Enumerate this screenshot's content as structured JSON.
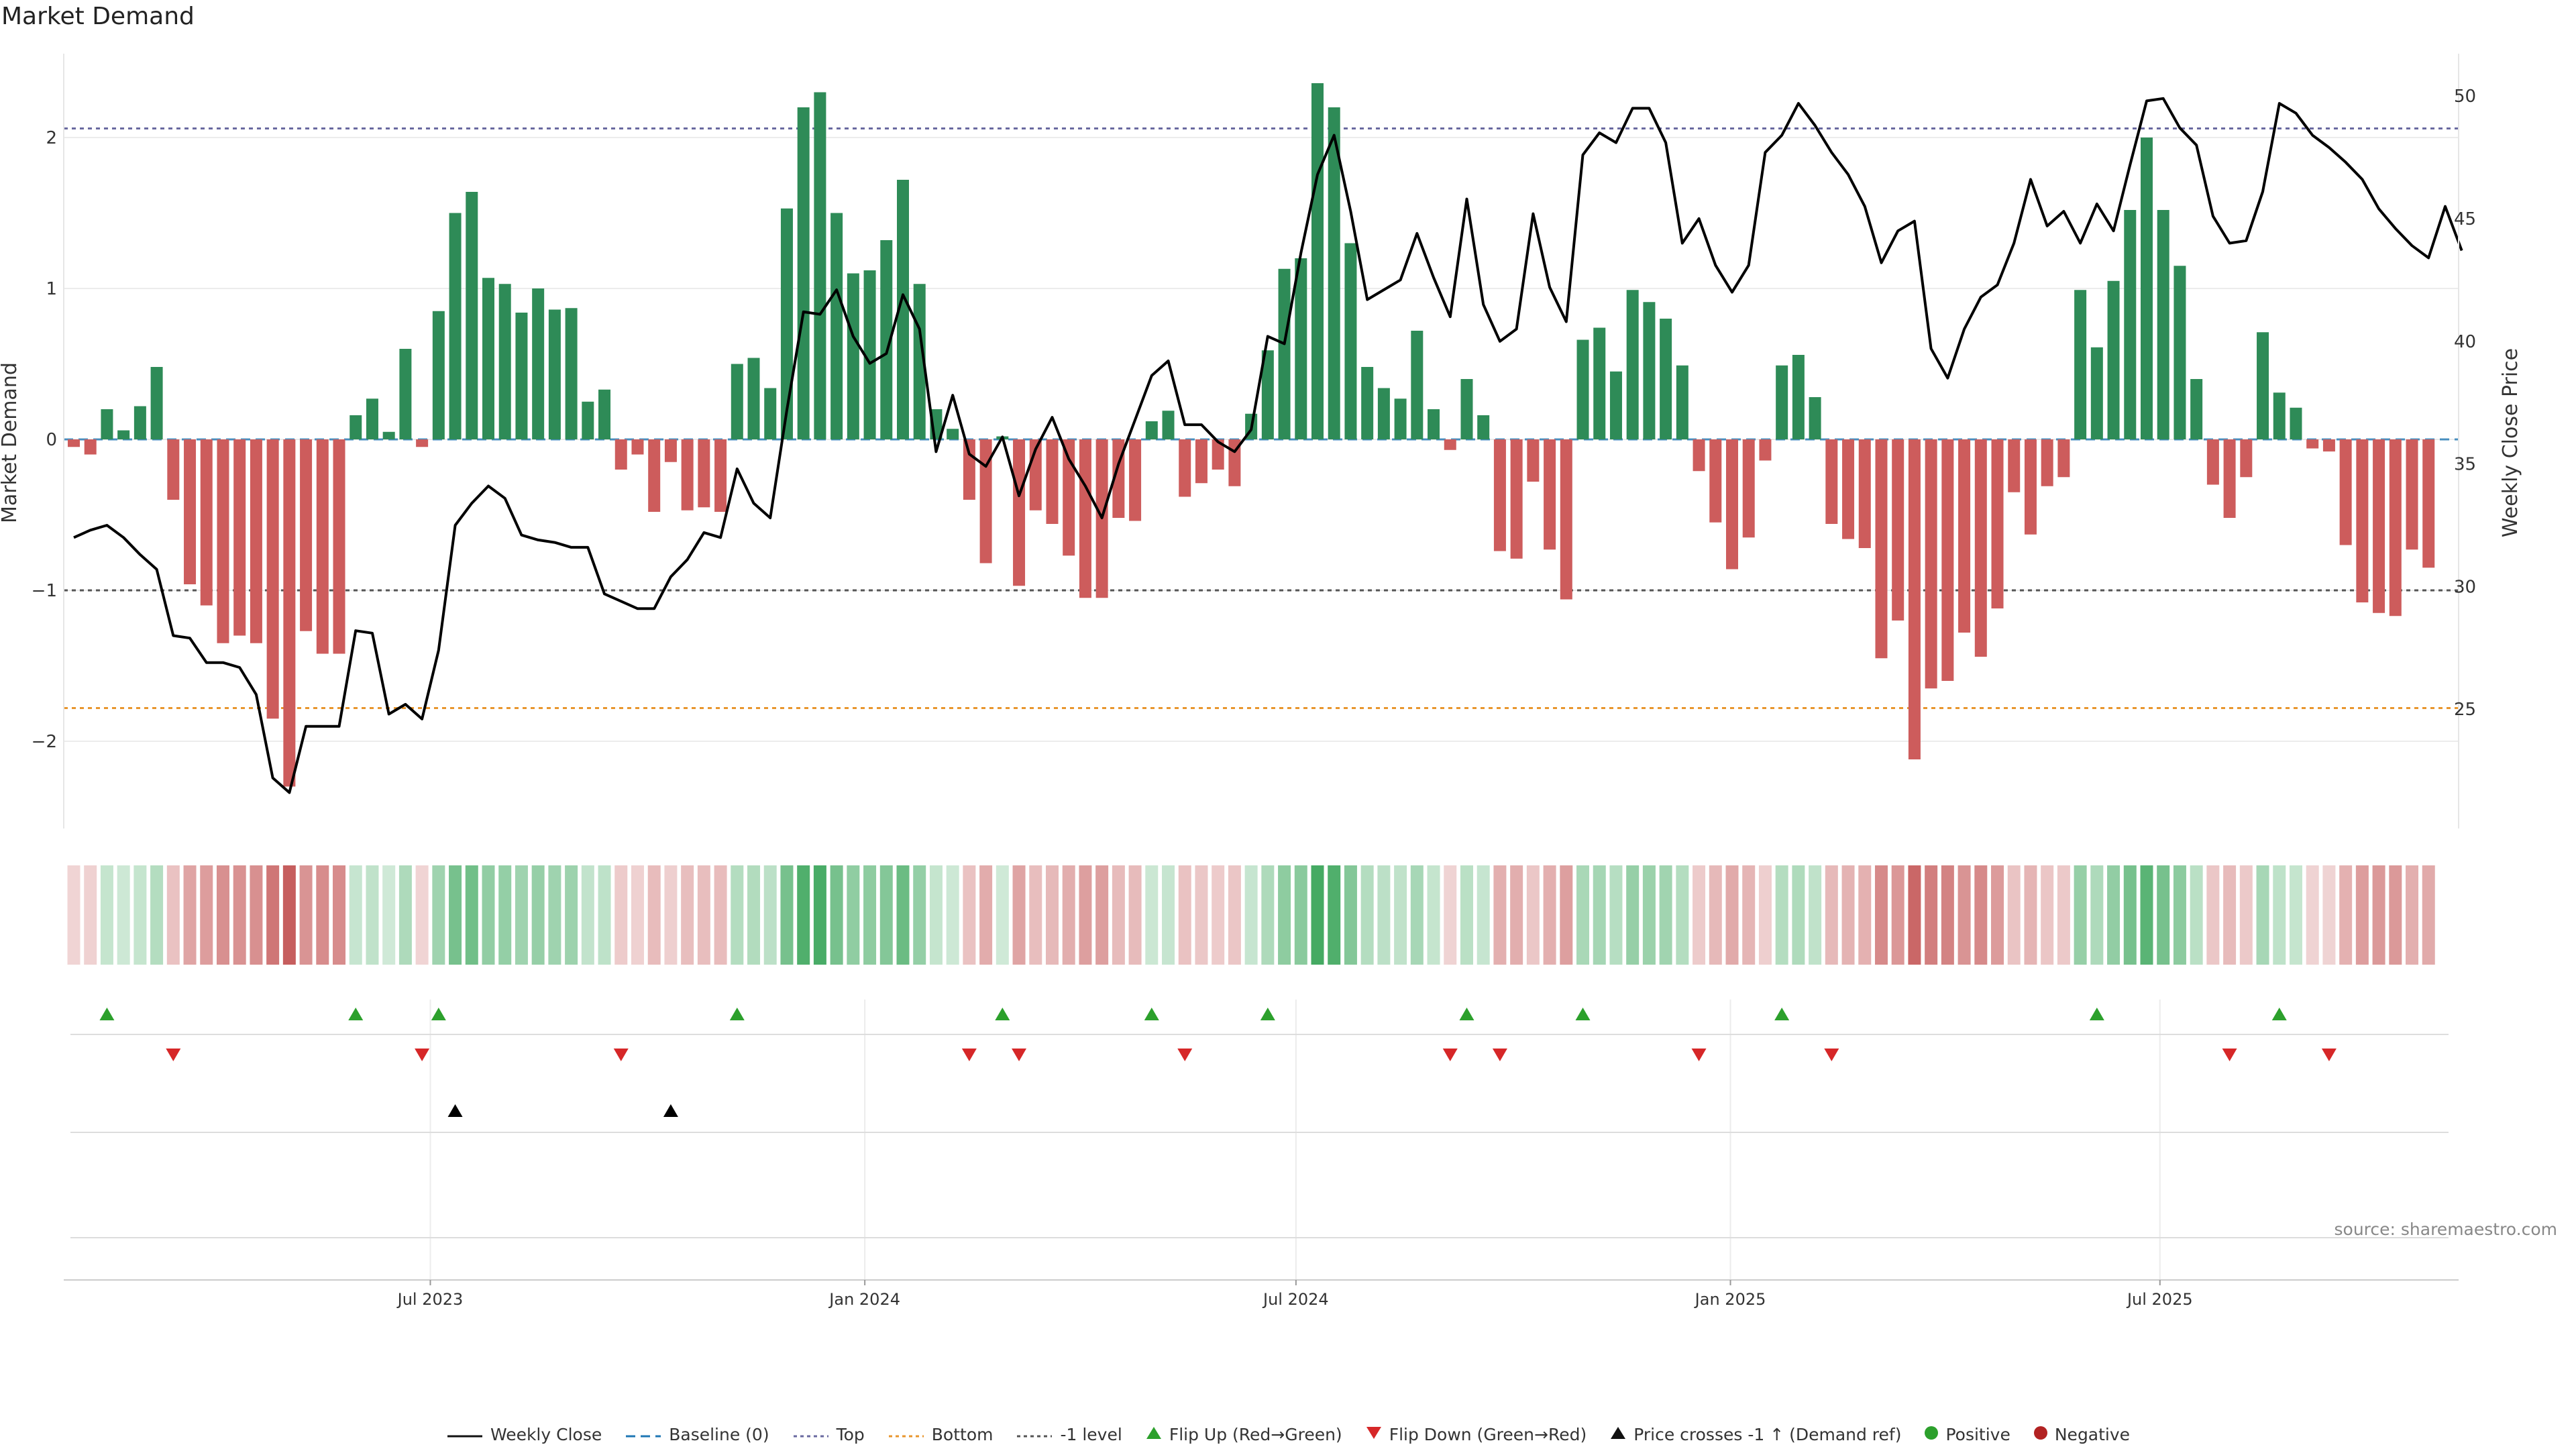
{
  "title": "Market Demand",
  "source": "source: sharemaestro.com",
  "colors": {
    "pos": "#2e8b57",
    "neg": "#cd5c5c",
    "price": "#000000",
    "top": "#6a6aa0",
    "bottom": "#e8962e",
    "minus1": "#555555",
    "baseline": "#1f77b4",
    "flipUp": "#2ca02c",
    "flipDown": "#d62728",
    "cross": "#000000"
  },
  "chart_data": {
    "type": "bar+line",
    "title": "Market Demand",
    "ylabel_left": "Market Demand",
    "ylabel_right": "Weekly Close Price",
    "ylim_left": [
      -2.6,
      2.6
    ],
    "ylim_right": [
      20,
      52
    ],
    "yticks_left": [
      {
        "v": 2,
        "label": "2"
      },
      {
        "v": 1,
        "label": "1"
      },
      {
        "v": 0,
        "label": "0"
      },
      {
        "v": -1,
        "label": "−1"
      },
      {
        "v": -2,
        "label": "−2"
      }
    ],
    "yticks_right": [
      {
        "v": 50,
        "label": "50"
      },
      {
        "v": 45,
        "label": "45"
      },
      {
        "v": 40,
        "label": "40"
      },
      {
        "v": 35,
        "label": "35"
      },
      {
        "v": 30,
        "label": "30"
      },
      {
        "v": 25,
        "label": "25"
      }
    ],
    "reference_lines": {
      "top": 2.06,
      "bottom": -1.78,
      "minus_one": -1.0,
      "baseline": 0
    },
    "x_start": "2023-01-13",
    "x_ticks": [
      {
        "label": "Jul 2023",
        "index": 21.5
      },
      {
        "label": "Jan 2024",
        "index": 47.7
      },
      {
        "label": "Jul 2024",
        "index": 73.7
      },
      {
        "label": "Jan 2025",
        "index": 99.9
      },
      {
        "label": "Jul 2025",
        "index": 125.8
      }
    ],
    "demand": [
      -0.05,
      -0.1,
      0.2,
      0.06,
      0.22,
      0.48,
      -0.4,
      -0.96,
      -1.1,
      -1.35,
      -1.3,
      -1.35,
      -1.85,
      -2.3,
      -1.27,
      -1.42,
      -1.42,
      0.16,
      0.27,
      0.05,
      0.6,
      -0.05,
      0.85,
      1.5,
      1.64,
      1.07,
      1.03,
      0.84,
      1.0,
      0.86,
      0.87,
      0.25,
      0.33,
      -0.2,
      -0.1,
      -0.48,
      -0.15,
      -0.47,
      -0.45,
      -0.48,
      0.5,
      0.54,
      0.34,
      1.53,
      2.2,
      2.3,
      1.5,
      1.1,
      1.12,
      1.32,
      1.72,
      1.03,
      0.2,
      0.07,
      -0.4,
      -0.82,
      0.02,
      -0.97,
      -0.47,
      -0.56,
      -0.77,
      -1.05,
      -1.05,
      -0.52,
      -0.54,
      0.12,
      0.19,
      -0.38,
      -0.29,
      -0.2,
      -0.31,
      0.17,
      0.59,
      1.13,
      1.2,
      2.36,
      2.2,
      1.3,
      0.48,
      0.34,
      0.27,
      0.72,
      0.2,
      -0.07,
      0.4,
      0.16,
      -0.74,
      -0.79,
      -0.28,
      -0.73,
      -1.06,
      0.66,
      0.74,
      0.45,
      0.99,
      0.91,
      0.8,
      0.49,
      -0.21,
      -0.55,
      -0.86,
      -0.65,
      -0.14,
      0.49,
      0.56,
      0.28,
      -0.56,
      -0.66,
      -0.72,
      -1.45,
      -1.2,
      -2.12,
      -1.65,
      -1.6,
      -1.28,
      -1.44,
      -1.12,
      -0.35,
      -0.63,
      -0.31,
      -0.25,
      0.99,
      0.61,
      1.05,
      1.52,
      2.0,
      1.52,
      1.15,
      0.4,
      -0.3,
      -0.52,
      -0.25,
      0.71,
      0.31,
      0.21,
      -0.06,
      -0.08,
      -0.7,
      -1.08,
      -1.15,
      -1.17,
      -0.73,
      -0.85
    ],
    "price": [
      32,
      32.3,
      32.5,
      32,
      31.3,
      30.7,
      28,
      27.9,
      26.9,
      26.9,
      26.7,
      25.6,
      22.2,
      21.6,
      24.3,
      24.3,
      24.3,
      28.2,
      28.1,
      24.8,
      25.2,
      24.6,
      27.4,
      32.5,
      33.4,
      34.1,
      33.6,
      32.1,
      31.9,
      31.8,
      31.6,
      31.6,
      29.7,
      29.4,
      29.1,
      29.1,
      30.4,
      31.1,
      32.2,
      32,
      34.8,
      33.4,
      32.8,
      37.2,
      41.2,
      41.1,
      42.1,
      40.2,
      39.1,
      39.5,
      41.9,
      40.5,
      35.5,
      37.8,
      35.4,
      34.9,
      36.1,
      33.7,
      35.6,
      36.9,
      35.2,
      34.1,
      32.8,
      35,
      36.8,
      38.6,
      39.2,
      36.6,
      36.6,
      35.9,
      35.5,
      36.4,
      40.2,
      39.9,
      43.6,
      46.8,
      48.4,
      45.3,
      41.7,
      42.1,
      42.5,
      44.4,
      42.6,
      41,
      45.8,
      41.5,
      40,
      40.5,
      45.2,
      42.2,
      40.8,
      47.6,
      48.5,
      48.1,
      49.5,
      49.5,
      48.1,
      44,
      45,
      43.1,
      42,
      43.1,
      47.7,
      48.4,
      49.7,
      48.8,
      47.7,
      46.8,
      45.5,
      43.2,
      44.5,
      44.9,
      39.7,
      38.5,
      40.5,
      41.8,
      42.3,
      44,
      46.6,
      44.7,
      45.3,
      44,
      45.6,
      44.5,
      47.2,
      49.8,
      49.9,
      48.7,
      48,
      45.1,
      44,
      44.1,
      46.1,
      49.7,
      49.3,
      48.4,
      47.9,
      47.3,
      46.6,
      45.4,
      44.6,
      43.9,
      43.4,
      45.5,
      43.7
    ],
    "flip_up_idx": [
      2,
      17,
      22,
      40,
      56,
      65,
      72,
      84,
      91,
      103,
      122,
      133
    ],
    "flip_down_idx": [
      6,
      21,
      33,
      54,
      57,
      67,
      83,
      86,
      98,
      106,
      130,
      136
    ],
    "cross_idx": [
      23,
      36
    ],
    "legend": [
      {
        "kind": "line",
        "color": "#111111",
        "dash": "",
        "label": "Weekly Close"
      },
      {
        "kind": "line",
        "color": "#1f77b4",
        "dash": "14,8",
        "label": "Baseline (0)"
      },
      {
        "kind": "line",
        "color": "#6a6aa0",
        "dash": "5,5",
        "label": "Top"
      },
      {
        "kind": "line",
        "color": "#e8962e",
        "dash": "5,5",
        "label": "Bottom"
      },
      {
        "kind": "line",
        "color": "#555555",
        "dash": "5,5",
        "label": "-1 level"
      },
      {
        "kind": "tri-up",
        "color": "#2ca02c",
        "label": "Flip Up (Red→Green)"
      },
      {
        "kind": "tri-down",
        "color": "#d62728",
        "label": "Flip Down (Green→Red)"
      },
      {
        "kind": "tri-up",
        "color": "#111111",
        "label": "Price crosses -1 ↑ (Demand ref)"
      },
      {
        "kind": "dot",
        "color": "#2ca02c",
        "label": "Positive"
      },
      {
        "kind": "dot",
        "color": "#b22222",
        "label": "Negative"
      }
    ]
  }
}
